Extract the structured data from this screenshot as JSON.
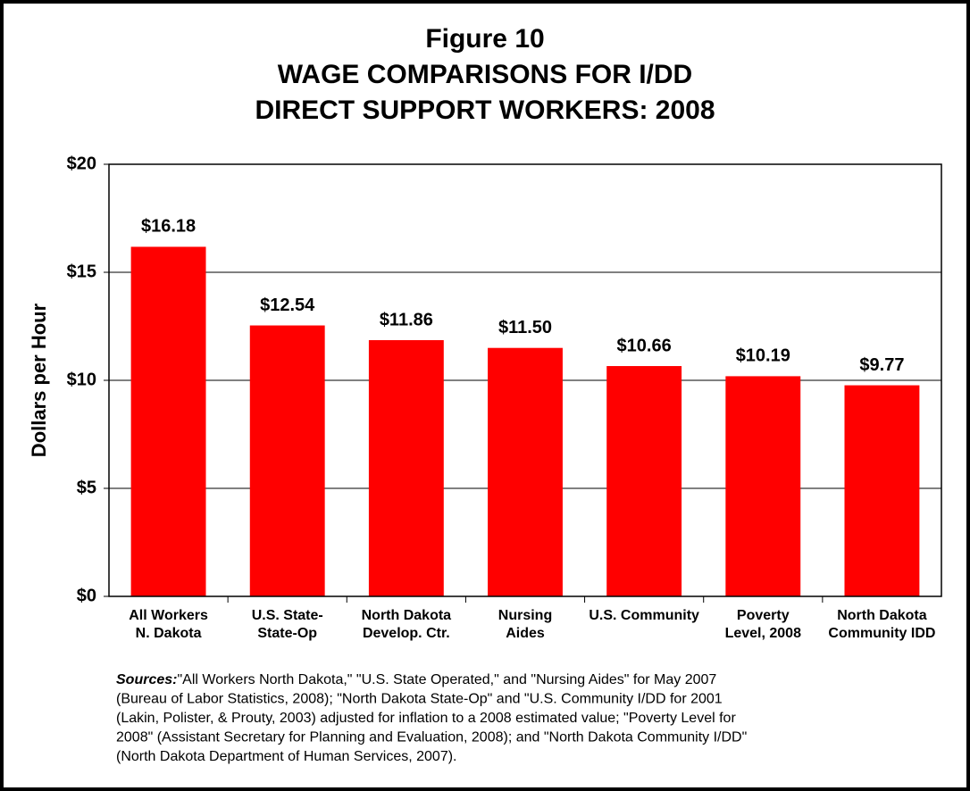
{
  "chart_data": {
    "type": "bar",
    "title": [
      "Figure 10",
      "WAGE COMPARISONS FOR I/DD",
      "DIRECT SUPPORT WORKERS: 2008"
    ],
    "y_axis_label": "Dollars per Hour",
    "categories": [
      [
        "All Workers",
        "N. Dakota"
      ],
      [
        "U.S. State-",
        "State-Op"
      ],
      [
        "North Dakota",
        "Develop. Ctr."
      ],
      [
        "Nursing",
        "Aides"
      ],
      [
        "U.S. Community"
      ],
      [
        "Poverty",
        "Level, 2008"
      ],
      [
        "North Dakota",
        "Community IDD"
      ]
    ],
    "values": [
      16.18,
      12.54,
      11.86,
      11.5,
      10.66,
      10.19,
      9.77
    ],
    "value_labels": [
      "$16.18",
      "$12.54",
      "$11.86",
      "$11.50",
      "$10.66",
      "$10.19",
      "$9.77"
    ],
    "color": "#ff0000",
    "ylim": [
      0,
      20
    ],
    "yticks": [
      {
        "value": 0,
        "label": "$0"
      },
      {
        "value": 5,
        "label": "$5"
      },
      {
        "value": 10,
        "label": "$10"
      },
      {
        "value": 15,
        "label": "$15"
      },
      {
        "value": 20,
        "label": "$20"
      }
    ],
    "grid": true,
    "source_label": "Sources:",
    "source_lines": [
      "\"All Workers North Dakota,\" \"U.S. State Operated,\" and \"Nursing Aides\" for May 2007",
      "(Bureau of Labor Statistics, 2008); \"North Dakota State-Op\" and \"U.S. Community I/DD for 2001",
      "(Lakin, Polister, & Prouty, 2003) adjusted for inflation to a 2008 estimated value; \"Poverty Level for",
      "2008\" (Assistant Secretary for Planning and Evaluation, 2008); and \"North Dakota Community I/DD\"",
      "(North Dakota Department of Human Services, 2007)."
    ]
  }
}
